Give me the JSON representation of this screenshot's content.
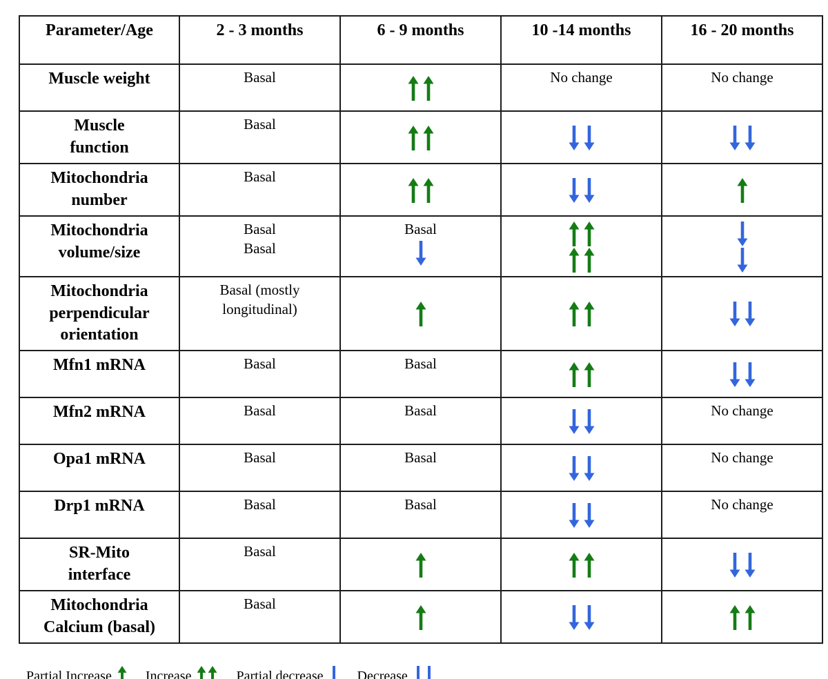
{
  "colors": {
    "green": "#157c15",
    "blue": "#3366dd",
    "border": "#1c1c1c",
    "text": "#000000"
  },
  "table": {
    "header": [
      "Parameter/Age",
      "2 - 3 months",
      "6 - 9 months",
      "10 -14 months",
      "16 - 20 months"
    ],
    "rows": [
      {
        "parameter": [
          "Muscle weight"
        ],
        "cells": [
          [
            {
              "text": "Basal"
            }
          ],
          [
            {
              "arrows": "up",
              "count": 2,
              "color": "green"
            }
          ],
          [
            {
              "text": "No change"
            }
          ],
          [
            {
              "text": "No change"
            }
          ]
        ]
      },
      {
        "parameter": [
          "Muscle",
          "function"
        ],
        "cells": [
          [
            {
              "text": "Basal"
            }
          ],
          [
            {
              "arrows": "up",
              "count": 2,
              "color": "green"
            }
          ],
          [
            {
              "arrows": "down",
              "count": 2,
              "color": "blue"
            }
          ],
          [
            {
              "arrows": "down",
              "count": 2,
              "color": "blue"
            }
          ]
        ]
      },
      {
        "parameter": [
          "Mitochondria",
          "number"
        ],
        "cells": [
          [
            {
              "text": "Basal"
            }
          ],
          [
            {
              "arrows": "up",
              "count": 2,
              "color": "green"
            }
          ],
          [
            {
              "arrows": "down",
              "count": 2,
              "color": "blue"
            }
          ],
          [
            {
              "arrows": "up",
              "count": 1,
              "color": "green"
            }
          ]
        ]
      },
      {
        "parameter": [
          "Mitochondria",
          "volume/size"
        ],
        "cells": [
          [
            {
              "text": "Basal"
            },
            {
              "text": "Basal"
            }
          ],
          [
            {
              "text": "Basal"
            },
            {
              "arrows": "down",
              "count": 1,
              "color": "blue"
            }
          ],
          [
            {
              "arrows": "up",
              "count": 2,
              "color": "green"
            },
            {
              "arrows": "up",
              "count": 2,
              "color": "green"
            }
          ],
          [
            {
              "arrows": "down",
              "count": 1,
              "color": "blue"
            },
            {
              "arrows": "down",
              "count": 1,
              "color": "blue"
            }
          ]
        ]
      },
      {
        "parameter": [
          "Mitochondria",
          "perpendicular",
          "orientation"
        ],
        "cells": [
          [
            {
              "text": "Basal (mostly"
            },
            {
              "text": "longitudinal)"
            }
          ],
          [
            {
              "arrows": "up",
              "count": 1,
              "color": "green"
            }
          ],
          [
            {
              "arrows": "up",
              "count": 2,
              "color": "green"
            }
          ],
          [
            {
              "arrows": "down",
              "count": 2,
              "color": "blue"
            }
          ]
        ]
      },
      {
        "parameter": [
          "Mfn1 mRNA"
        ],
        "cells": [
          [
            {
              "text": "Basal"
            }
          ],
          [
            {
              "text": "Basal"
            }
          ],
          [
            {
              "arrows": "up",
              "count": 2,
              "color": "green"
            }
          ],
          [
            {
              "arrows": "down",
              "count": 2,
              "color": "blue"
            }
          ]
        ]
      },
      {
        "parameter": [
          "Mfn2 mRNA"
        ],
        "cells": [
          [
            {
              "text": "Basal"
            }
          ],
          [
            {
              "text": "Basal"
            }
          ],
          [
            {
              "arrows": "down",
              "count": 2,
              "color": "blue"
            }
          ],
          [
            {
              "text": "No change"
            }
          ]
        ]
      },
      {
        "parameter": [
          "Opa1 mRNA"
        ],
        "cells": [
          [
            {
              "text": "Basal"
            }
          ],
          [
            {
              "text": "Basal"
            }
          ],
          [
            {
              "arrows": "down",
              "count": 2,
              "color": "blue"
            }
          ],
          [
            {
              "text": "No change"
            }
          ]
        ]
      },
      {
        "parameter": [
          "Drp1 mRNA"
        ],
        "cells": [
          [
            {
              "text": "Basal"
            }
          ],
          [
            {
              "text": "Basal"
            }
          ],
          [
            {
              "arrows": "down",
              "count": 2,
              "color": "blue"
            }
          ],
          [
            {
              "text": "No change"
            }
          ]
        ]
      },
      {
        "parameter": [
          "SR-Mito",
          "interface"
        ],
        "cells": [
          [
            {
              "text": "Basal"
            }
          ],
          [
            {
              "arrows": "up",
              "count": 1,
              "color": "green"
            }
          ],
          [
            {
              "arrows": "up",
              "count": 2,
              "color": "green"
            }
          ],
          [
            {
              "arrows": "down",
              "count": 2,
              "color": "blue"
            }
          ]
        ]
      },
      {
        "parameter": [
          "Mitochondria",
          "Calcium (basal)"
        ],
        "cells": [
          [
            {
              "text": "Basal"
            }
          ],
          [
            {
              "arrows": "up",
              "count": 1,
              "color": "green"
            }
          ],
          [
            {
              "arrows": "down",
              "count": 2,
              "color": "blue"
            }
          ],
          [
            {
              "arrows": "up",
              "count": 2,
              "color": "green"
            }
          ]
        ]
      }
    ]
  },
  "legend": {
    "items": [
      {
        "label": "Partial Increase",
        "arrows": "up",
        "count": 1,
        "color": "green"
      },
      {
        "label": "Increase",
        "arrows": "up",
        "count": 2,
        "color": "green"
      },
      {
        "label": "Partial decrease",
        "arrows": "down",
        "count": 1,
        "color": "blue"
      },
      {
        "label": "Decrease",
        "arrows": "down",
        "count": 2,
        "color": "blue"
      }
    ]
  }
}
